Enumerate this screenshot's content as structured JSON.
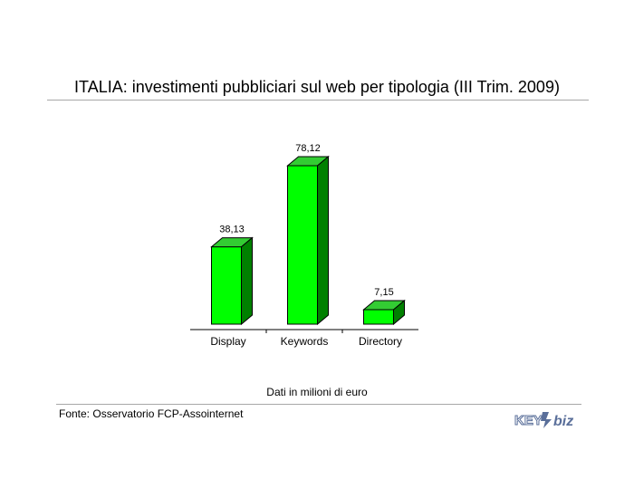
{
  "header": {
    "title": "ITALIA: investimenti pubbliciari sul web per tipologia (III Trim. 2009)"
  },
  "footer": {
    "note": "Dati in milioni di euro",
    "source": "Fonte: Osservatorio FCP-Assointernet",
    "logo_text": "KEY4biz"
  },
  "colors": {
    "bar_front": "#00ff00",
    "bar_top": "#33cc33",
    "bar_side": "#008000",
    "rule": "#a8a8a8"
  },
  "chart_data": {
    "type": "bar",
    "categories": [
      "Display",
      "Keywords",
      "Directory"
    ],
    "values": [
      38.13,
      78.12,
      7.15
    ],
    "value_labels": [
      "38,13",
      "78,12",
      "7,15"
    ],
    "title": "ITALIA: investimenti pubbliciari sul web per tipologia (III Trim. 2009)",
    "xlabel": "",
    "ylabel": "",
    "grid": false,
    "legend": "none"
  }
}
